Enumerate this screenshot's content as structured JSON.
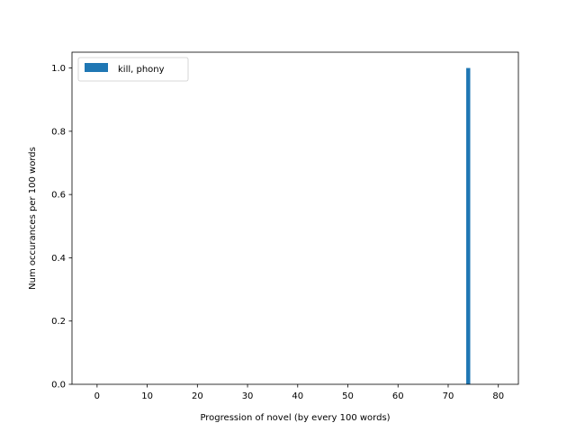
{
  "chart_data": {
    "type": "bar",
    "title": "",
    "xlabel": "Progression of novel (by every 100 words)",
    "ylabel": "Num occurances per 100 words",
    "xlim": [
      -5,
      84
    ],
    "ylim": [
      0,
      1.05
    ],
    "xticks": [
      0,
      10,
      20,
      30,
      40,
      50,
      60,
      70,
      80
    ],
    "yticks": [
      0.0,
      0.2,
      0.4,
      0.6,
      0.8,
      1.0
    ],
    "ytick_labels": [
      "0.0",
      "0.2",
      "0.4",
      "0.6",
      "0.8",
      "1.0"
    ],
    "grid": false,
    "legend_position": "upper-left",
    "series": [
      {
        "name": "kill, phony",
        "color": "#1f77b4",
        "bar_width": 0.8,
        "x": [
          74
        ],
        "values": [
          1.0
        ]
      }
    ]
  }
}
